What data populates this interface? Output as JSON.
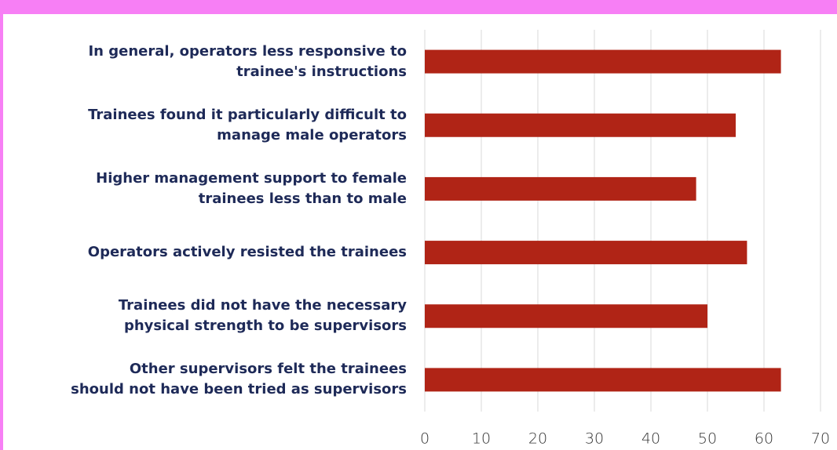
{
  "chart_data": {
    "type": "barh",
    "categories": [
      "In general, operators less responsive to\ntrainee's instructions",
      "Trainees found it particularly difficult to\nmanage male operators",
      "Higher management support to female\ntrainees less than to male",
      "Operators actively resisted the trainees",
      "Trainees did not have the necessary\nphysical strength to be supervisors",
      "Other supervisors felt the trainees\nshould not have been tried as supervisors"
    ],
    "values": [
      63,
      55,
      48,
      57,
      50,
      63
    ],
    "color": "#b02416",
    "xlim": [
      0,
      70
    ],
    "xticks": [
      0,
      10,
      20,
      30,
      40,
      50,
      60,
      70
    ],
    "grid": true
  }
}
